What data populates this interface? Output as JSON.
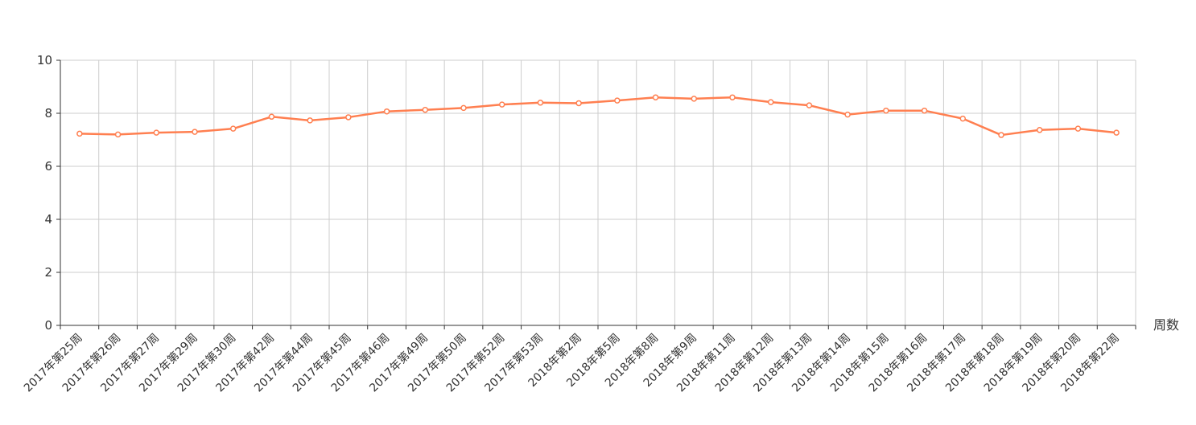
{
  "chart_data": {
    "type": "line",
    "xlabel": "周数",
    "ylim": [
      0,
      10
    ],
    "yticks": [
      0,
      2,
      4,
      6,
      8,
      10
    ],
    "grid": true,
    "categories": [
      "2017年第25周",
      "2017年第26周",
      "2017年第27周",
      "2017年第29周",
      "2017年第30周",
      "2017年第42周",
      "2017年第44周",
      "2017年第45周",
      "2017年第46周",
      "2017年第49周",
      "2017年第50周",
      "2017年第52周",
      "2017年第53周",
      "2018年第2周",
      "2018年第5周",
      "2018年第8周",
      "2018年第9周",
      "2018年第11周",
      "2018年第12周",
      "2018年第13周",
      "2018年第14周",
      "2018年第15周",
      "2018年第16周",
      "2018年第17周",
      "2018年第18周",
      "2018年第19周",
      "2018年第20周",
      "2018年第22周"
    ],
    "series": [
      {
        "color": "#ff7f50",
        "values": [
          7.23,
          7.2,
          7.27,
          7.3,
          7.42,
          7.87,
          7.73,
          7.85,
          8.07,
          8.13,
          8.2,
          8.33,
          8.4,
          8.38,
          8.48,
          8.6,
          8.55,
          8.6,
          8.42,
          8.3,
          7.95,
          8.1,
          8.1,
          7.8,
          7.18,
          7.37,
          7.42,
          7.27
        ]
      }
    ]
  },
  "colors": {
    "axis": "#333333",
    "grid": "#cccccc",
    "line": "#ff7f50"
  }
}
